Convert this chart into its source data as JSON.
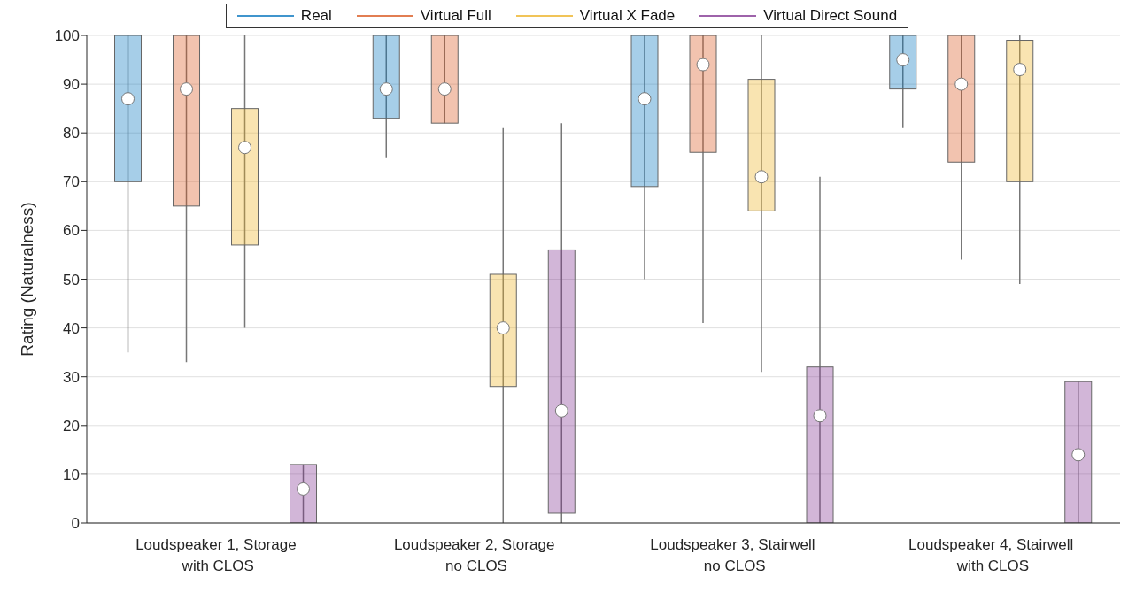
{
  "chart_data": {
    "type": "box",
    "ylabel": "Rating (Naturalness)",
    "categories": [
      "Loudspeaker 1, Storage\n with CLOS",
      "Loudspeaker 2, Storage\n no CLOS",
      "Loudspeaker 3, Stairwell\n no CLOS",
      "Loudspeaker 4, Stairwell\n with CLOS"
    ],
    "series": [
      {
        "name": "Real",
        "color": "#0072bd",
        "boxes": [
          {
            "low": 35,
            "q1": 70,
            "median": 87,
            "q3": 100,
            "high": 100
          },
          {
            "low": 75,
            "q1": 83,
            "median": 89,
            "q3": 100,
            "high": 100
          },
          {
            "low": 50,
            "q1": 69,
            "median": 87,
            "q3": 100,
            "high": 100
          },
          {
            "low": 81,
            "q1": 89,
            "median": 95,
            "q3": 100,
            "high": 100
          }
        ]
      },
      {
        "name": "Virtual Full",
        "color": "#d95319",
        "boxes": [
          {
            "low": 33,
            "q1": 65,
            "median": 89,
            "q3": 100,
            "high": 100
          },
          {
            "low": 82,
            "q1": 82,
            "median": 89,
            "q3": 100,
            "high": 100
          },
          {
            "low": 41,
            "q1": 76,
            "median": 94,
            "q3": 100,
            "high": 100
          },
          {
            "low": 54,
            "q1": 74,
            "median": 90,
            "q3": 100,
            "high": 100
          }
        ]
      },
      {
        "name": "Virtual X Fade",
        "color": "#edb120",
        "boxes": [
          {
            "low": 40,
            "q1": 57,
            "median": 77,
            "q3": 85,
            "high": 100
          },
          {
            "low": 0,
            "q1": 28,
            "median": 40,
            "q3": 51,
            "high": 81
          },
          {
            "low": 31,
            "q1": 64,
            "median": 71,
            "q3": 91,
            "high": 100
          },
          {
            "low": 49,
            "q1": 70,
            "median": 93,
            "q3": 99,
            "high": 100
          }
        ]
      },
      {
        "name": "Virtual Direct Sound",
        "color": "#7e2f8e",
        "boxes": [
          {
            "low": 0,
            "q1": 0,
            "median": 7,
            "q3": 12,
            "high": 12
          },
          {
            "low": 0,
            "q1": 2,
            "median": 23,
            "q3": 56,
            "high": 82
          },
          {
            "low": 0,
            "q1": 0,
            "median": 22,
            "q3": 32,
            "high": 71
          },
          {
            "low": 0,
            "q1": 0,
            "median": 14,
            "q3": 29,
            "high": 29
          }
        ]
      }
    ],
    "ylim": [
      0,
      100
    ],
    "yticks": [
      0,
      10,
      20,
      30,
      40,
      50,
      60,
      70,
      80,
      90,
      100
    ],
    "grid": "y",
    "legend": "top"
  }
}
